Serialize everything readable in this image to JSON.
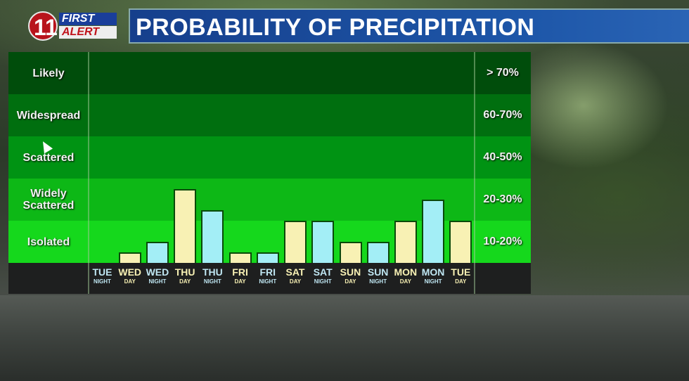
{
  "logo": {
    "number": "11",
    "first": "FIRST",
    "alert": "ALERT"
  },
  "header": {
    "title": "PROBABILITY OF PRECIPITATION"
  },
  "chart_data": {
    "type": "bar",
    "title": "PROBABILITY OF PRECIPITATION",
    "bands": [
      {
        "label": "Likely",
        "range": "> 70%",
        "color": "#004d0b"
      },
      {
        "label": "Widespread",
        "range": "60-70%",
        "color": "#006f0f"
      },
      {
        "label": "Scattered",
        "range": "40-50%",
        "color": "#009313"
      },
      {
        "label": "Widely Scattered",
        "range": "20-30%",
        "color": "#0db816"
      },
      {
        "label": "Isolated",
        "range": "10-20%",
        "color": "#15d81c"
      }
    ],
    "categories": [
      {
        "day": "TUE",
        "period": "NIGHT"
      },
      {
        "day": "WED",
        "period": "DAY"
      },
      {
        "day": "WED",
        "period": "NIGHT"
      },
      {
        "day": "THU",
        "period": "DAY"
      },
      {
        "day": "THU",
        "period": "NIGHT"
      },
      {
        "day": "FRI",
        "period": "DAY"
      },
      {
        "day": "FRI",
        "period": "NIGHT"
      },
      {
        "day": "SAT",
        "period": "DAY"
      },
      {
        "day": "SAT",
        "period": "NIGHT"
      },
      {
        "day": "SUN",
        "period": "DAY"
      },
      {
        "day": "SUN",
        "period": "NIGHT"
      },
      {
        "day": "MON",
        "period": "DAY"
      },
      {
        "day": "MON",
        "period": "NIGHT"
      },
      {
        "day": "TUE",
        "period": "DAY"
      }
    ],
    "values": [
      0,
      5,
      10,
      27.5,
      22.5,
      5,
      5,
      20,
      20,
      10,
      10,
      20,
      25,
      20
    ],
    "day_color": "#f8f1b4",
    "night_color": "#a3eef6",
    "day_label_color": "#f8f1b4",
    "night_label_color": "#bfe6f2"
  }
}
